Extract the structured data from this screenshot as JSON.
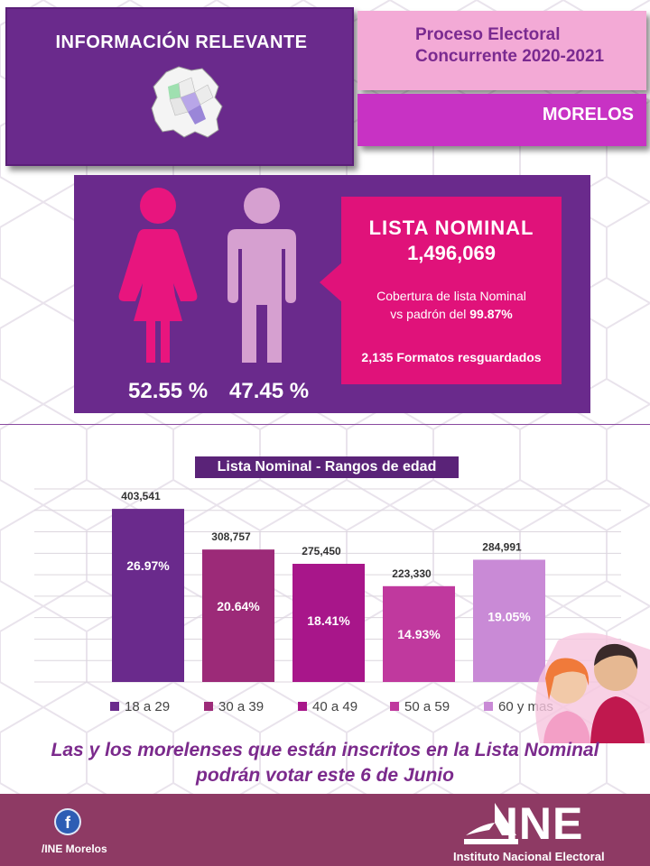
{
  "header": {
    "title": "INFORMACIÓN RELEVANTE",
    "process_line1": "Proceso Electoral",
    "process_line2": "Concurrente 2020-2021",
    "state": "MORELOS"
  },
  "stats": {
    "women_pct": "52.55 %",
    "men_pct": "47.45 %",
    "lista_title": "LISTA  NOMINAL",
    "lista_value": "1,496,069",
    "coverage_line1": "Cobertura de lista Nominal",
    "coverage_line2_prefix": "vs padrón del ",
    "coverage_pct": "99.87%",
    "formatos": "2,135 Formatos resguardados"
  },
  "colors": {
    "purple_dark": "#6a2a8c",
    "magenta": "#e0127a",
    "pink_light": "#f3aad6",
    "women_fig": "#e8157e",
    "men_fig": "#d6a0d0"
  },
  "chart_data": {
    "type": "bar",
    "title": "Lista Nominal - Rangos de edad",
    "categories": [
      "18 a 29",
      "30 a 39",
      "40 a 49",
      "50 a 59",
      "60 y mas"
    ],
    "values": [
      403541,
      308757,
      275450,
      223330,
      284991
    ],
    "value_labels": [
      "403,541",
      "308,757",
      "275,450",
      "223,330",
      "284,991"
    ],
    "percent_labels": [
      "26.97%",
      "20.64%",
      "18.41%",
      "14.93%",
      "19.05%"
    ],
    "colors": [
      "#6a2a8c",
      "#9c2a78",
      "#a8168a",
      "#c0399e",
      "#c98ad6"
    ],
    "ylim": [
      0,
      450000
    ],
    "grid": true,
    "legend": "bottom"
  },
  "slogan": {
    "line1": "Las y los morelenses que están inscritos en la Lista Nominal",
    "line2": "podrán votar este 6 de Junio"
  },
  "footer": {
    "fb_icon": "facebook-icon",
    "fb_letter": "f",
    "fb_handle": "/INE Morelos",
    "org_short": "INE",
    "org_name": "Instituto Nacional Electoral"
  }
}
